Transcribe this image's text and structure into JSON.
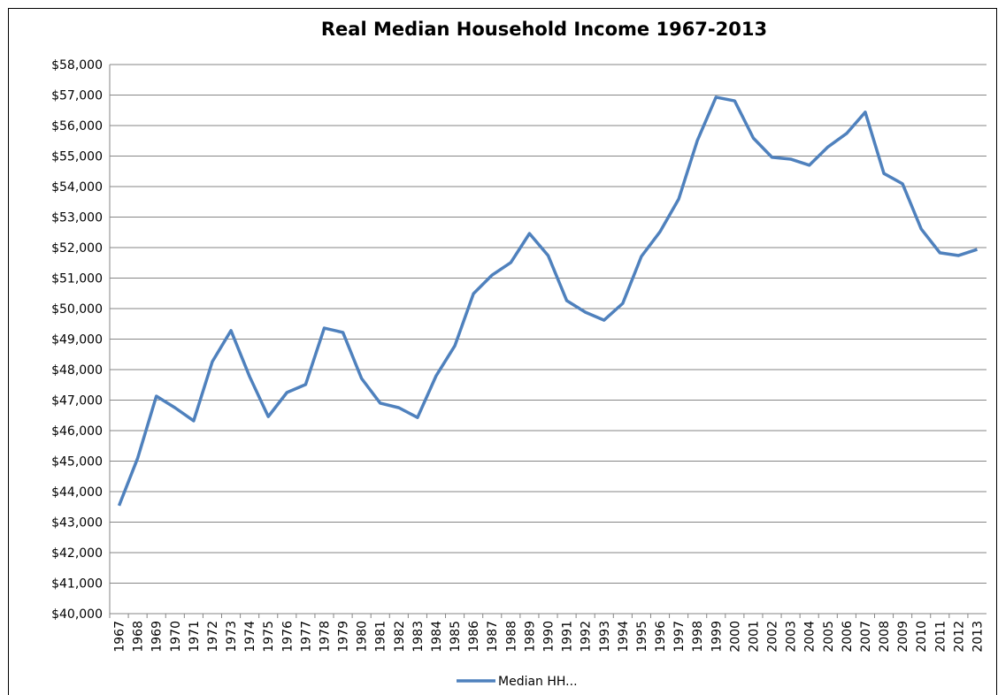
{
  "chart_data": {
    "type": "line",
    "title": "Real Median Household Income 1967-2013",
    "categories": [
      "1967",
      "1968",
      "1969",
      "1970",
      "1971",
      "1972",
      "1973",
      "1974",
      "1975",
      "1976",
      "1977",
      "1978",
      "1979",
      "1980",
      "1981",
      "1982",
      "1983",
      "1984",
      "1985",
      "1986",
      "1987",
      "1988",
      "1989",
      "1990",
      "1991",
      "1992",
      "1993",
      "1994",
      "1995",
      "1996",
      "1997",
      "1998",
      "1999",
      "2000",
      "2001",
      "2002",
      "2003",
      "2004",
      "2005",
      "2006",
      "2007",
      "2008",
      "2009",
      "2010",
      "2011",
      "2012",
      "2013"
    ],
    "series": [
      {
        "name": "Median HH...",
        "color": "#4f81bd",
        "values": [
          43540,
          45100,
          47130,
          46750,
          46320,
          48260,
          49280,
          47770,
          46460,
          47250,
          47510,
          49360,
          49220,
          47710,
          46900,
          46750,
          46430,
          47800,
          48780,
          50490,
          51100,
          51510,
          52460,
          51740,
          50260,
          49880,
          49620,
          50170,
          51710,
          52520,
          53590,
          55510,
          56930,
          56810,
          55590,
          54960,
          54900,
          54700,
          55300,
          55740,
          56440,
          54430,
          54090,
          52610,
          51830,
          51740,
          51940
        ]
      }
    ],
    "ylim": [
      40000,
      58000
    ],
    "yticks": [
      {
        "value": 40000,
        "label": "$40,000"
      },
      {
        "value": 41000,
        "label": "$41,000"
      },
      {
        "value": 42000,
        "label": "$42,000"
      },
      {
        "value": 43000,
        "label": "$43,000"
      },
      {
        "value": 44000,
        "label": "$44,000"
      },
      {
        "value": 45000,
        "label": "$45,000"
      },
      {
        "value": 46000,
        "label": "$46,000"
      },
      {
        "value": 47000,
        "label": "$47,000"
      },
      {
        "value": 48000,
        "label": "$48,000"
      },
      {
        "value": 49000,
        "label": "$49,000"
      },
      {
        "value": 50000,
        "label": "$50,000"
      },
      {
        "value": 51000,
        "label": "$51,000"
      },
      {
        "value": 52000,
        "label": "$52,000"
      },
      {
        "value": 53000,
        "label": "$53,000"
      },
      {
        "value": 54000,
        "label": "$54,000"
      },
      {
        "value": 55000,
        "label": "$55,000"
      },
      {
        "value": 56000,
        "label": "$56,000"
      },
      {
        "value": 57000,
        "label": "$57,000"
      },
      {
        "value": 58000,
        "label": "$58,000"
      }
    ],
    "grid": true,
    "legend": "bottom"
  }
}
